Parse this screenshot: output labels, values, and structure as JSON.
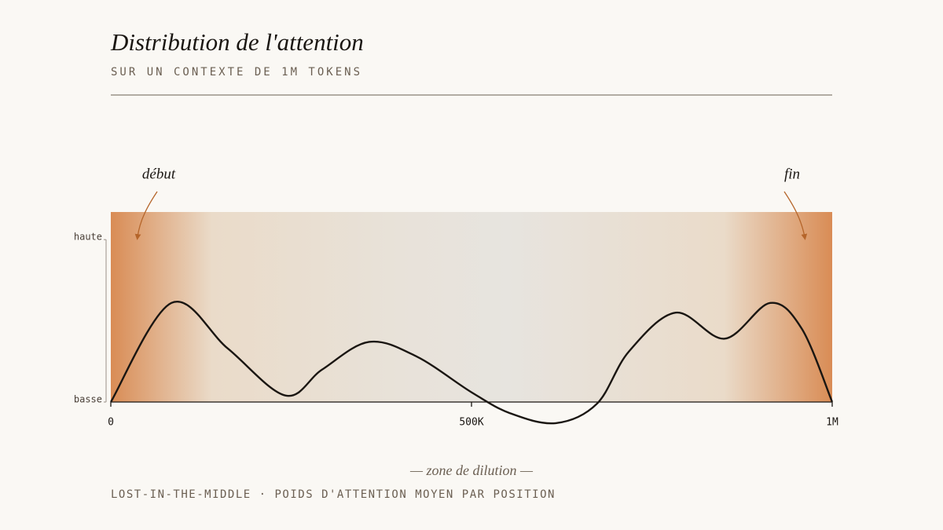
{
  "chart_data": {
    "type": "line",
    "title": "Distribution de l'attention",
    "subtitle": "SUR UN CONTEXTE DE 1M TOKENS",
    "annotations": {
      "start": "début",
      "end": "fin",
      "middle": "— zone de dilution —"
    },
    "caption": "LOST-IN-THE-MIDDLE · POIDS D'ATTENTION MOYEN PAR POSITION",
    "x": [
      0,
      84000,
      162000,
      242000,
      293000,
      358000,
      424000,
      500000,
      554000,
      617000,
      674000,
      718000,
      783000,
      851000,
      914000,
      958000,
      1000000
    ],
    "series": [
      {
        "color": "#1a1612",
        "values": [
          0,
          0.61,
          0.33,
          0.04,
          0.2,
          0.37,
          0.28,
          0.06,
          -0.07,
          -0.13,
          -0.01,
          0.31,
          0.55,
          0.39,
          0.61,
          0.45,
          0
        ]
      }
    ],
    "xlim": [
      0,
      1000000
    ],
    "xticks": [
      0,
      {
        "value": 500000,
        "label": "500K"
      },
      {
        "value": 1000000,
        "label": "1M"
      }
    ],
    "ylim": [
      0,
      1.17
    ],
    "yticks": [
      {
        "value": 1,
        "label": "haute"
      },
      {
        "value": 0,
        "label": "basse"
      }
    ]
  }
}
